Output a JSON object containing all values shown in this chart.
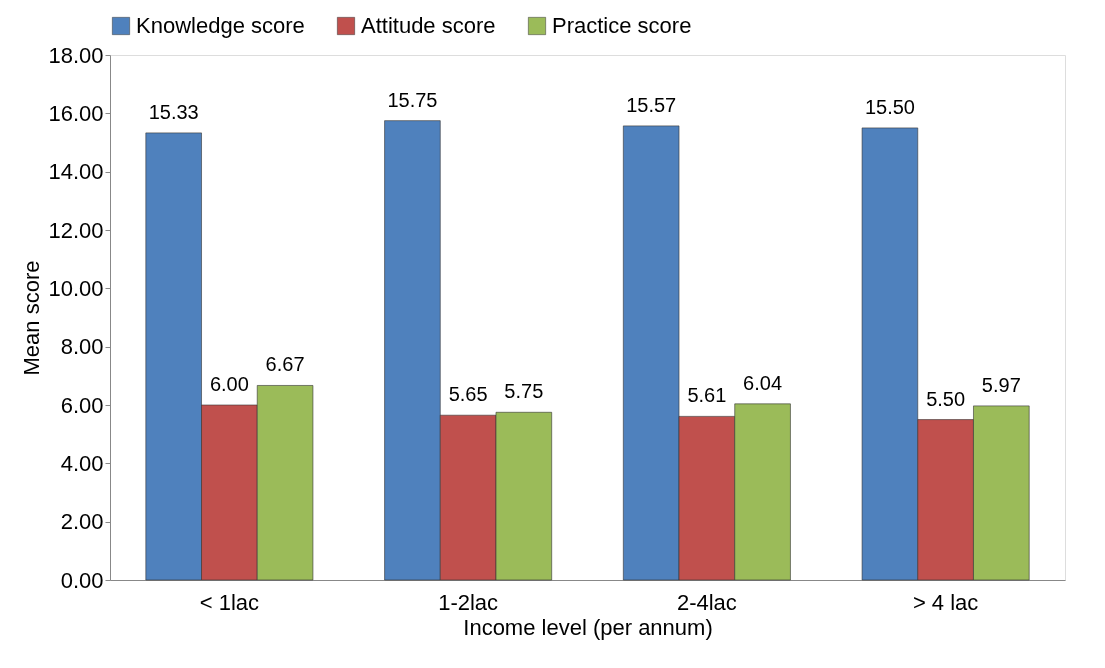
{
  "chart_data": {
    "type": "bar",
    "xlabel": "Income level (per annum)",
    "ylabel": "Mean score",
    "categories": [
      "< 1lac",
      "1-2lac",
      "2-4lac",
      "> 4 lac"
    ],
    "series": [
      {
        "name": "Knowledge score",
        "color": "#4f81bd",
        "values": [
          15.33,
          15.75,
          15.57,
          15.5
        ],
        "value_labels": [
          "15.33",
          "15.75",
          "15.57",
          "15.50"
        ]
      },
      {
        "name": "Attitude score",
        "color": "#c0504d",
        "values": [
          6.0,
          5.65,
          5.61,
          5.5
        ],
        "value_labels": [
          "6.00",
          "5.65",
          "5.61",
          "5.50"
        ]
      },
      {
        "name": "Practice score",
        "color": "#9bbb59",
        "values": [
          6.67,
          5.75,
          6.04,
          5.97
        ],
        "value_labels": [
          "6.67",
          "5.75",
          "6.04",
          "5.97"
        ]
      }
    ],
    "ylim": [
      0,
      18
    ],
    "yticks": [
      {
        "value": 0,
        "label": "0.00"
      },
      {
        "value": 2,
        "label": "2.00"
      },
      {
        "value": 4,
        "label": "4.00"
      },
      {
        "value": 6,
        "label": "6.00"
      },
      {
        "value": 8,
        "label": "8.00"
      },
      {
        "value": 10,
        "label": "10.00"
      },
      {
        "value": 12,
        "label": "12.00"
      },
      {
        "value": 14,
        "label": "14.00"
      },
      {
        "value": 16,
        "label": "16.00"
      },
      {
        "value": 18,
        "label": "18.00"
      }
    ],
    "grid": false,
    "legend": "top"
  }
}
